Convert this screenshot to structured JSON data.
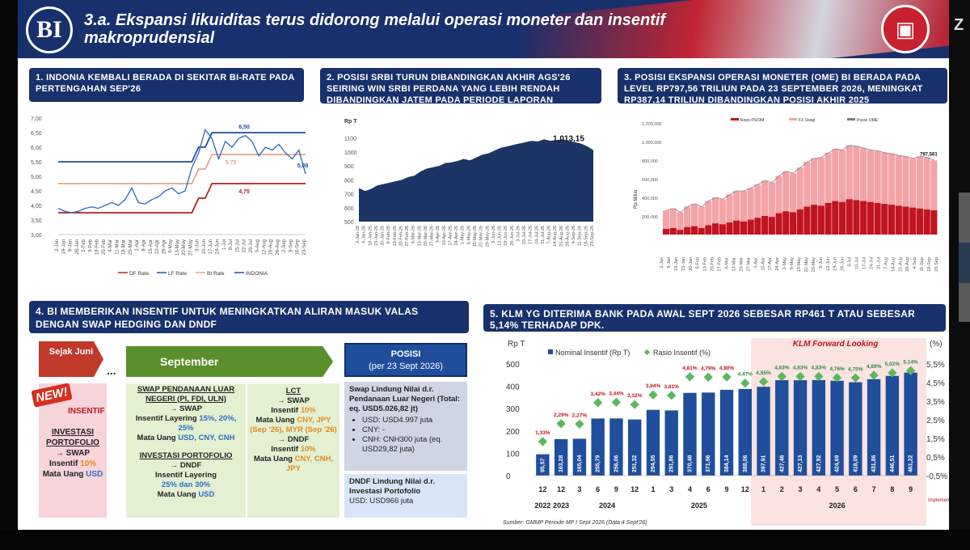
{
  "header": {
    "logo_text": "BI",
    "title": "3.a. Ekspansi likuiditas terus didorong melalui operasi moneter dan insentif makroprudensial"
  },
  "side": {
    "letter": "Z"
  },
  "panel1": {
    "title": "1. INDONIA KEMBALI BERADA DI SEKITAR BI-RATE PADA PERTENGAHAN SEP'26",
    "yticks": [
      "7,00",
      "6,50",
      "6,00",
      "5,50",
      "5,00",
      "4,50",
      "4,00",
      "3,50",
      "3,00"
    ],
    "xticks": [
      "2-Jan",
      "19-Jan",
      "9-Jan",
      "26-Jan",
      "2-Feb",
      "9-Feb",
      "18-Feb",
      "25-Feb",
      "4-Mar",
      "11-Mar",
      "18-Mar",
      "25-Mar",
      "1-Apr",
      "8-Apr",
      "15-Apr",
      "22-Apr",
      "29-Apr",
      "6-May",
      "13-May",
      "20-May",
      "27-May",
      "3-Jun",
      "10-Jun",
      "17-Jun",
      "24-Jun",
      "1-Jul",
      "8-Jul",
      "15-Jul",
      "22-Jul",
      "29-Jul",
      "5-Aug",
      "12-Aug",
      "19-Aug",
      "26-Aug",
      "2-Sep",
      "9-Sep",
      "16-Sep",
      "23-Sep"
    ],
    "labels": {
      "lf": "6,50",
      "indonia": "5,08",
      "bi": "5,75",
      "df": "4,75"
    },
    "legend": [
      "DF Rate",
      "LF Rate",
      "BI Rate",
      "INDONIA"
    ]
  },
  "panel2": {
    "title": "2. POSISI SRBI TURUN DIBANDINGKAN AKHIR AGS'26 SEIRING WIN SRBI PERDANA YANG LEBIH RENDAH DIBANDINGKAN JATEM PADA PERIODE LAPORAN",
    "unit": "Rp T",
    "yticks": [
      "1100",
      "1000",
      "900",
      "800",
      "700",
      "600",
      "500"
    ],
    "last_label": "1.013,15",
    "xticks": [
      "2-Jan-26",
      "9-Jan-26",
      "16-Jan-26",
      "23-Jan-26",
      "30-Jan-26",
      "6-Feb-26",
      "13-Feb-26",
      "20-Feb-26",
      "27-Feb-26",
      "6-Mar-26",
      "13-Mar-26",
      "20-Mar-26",
      "27-Mar-26",
      "3-Apr-26",
      "10-Apr-26",
      "17-Apr-26",
      "24-Apr-26",
      "1-May-26",
      "8-May-26",
      "15-May-26",
      "22-May-26",
      "29-May-26",
      "5-Jun-26",
      "12-Jun-26",
      "19-Jun-26",
      "26-Jun-26",
      "3-Jul-26",
      "10-Jul-26",
      "17-Jul-26",
      "24-Jul-26",
      "31-Jul-26",
      "7-Aug-26",
      "14-Aug-26",
      "21-Aug-26",
      "28-Aug-26",
      "4-Sep-26",
      "11-Sep-26",
      "18-Sep-26",
      "23-Sep-26"
    ]
  },
  "panel3": {
    "title": "3. POSISI EKSPANSI OPERASI MONETER (OME) BI BERADA PADA LEVEL RP797,56 TRILIUN PADA 23 SEPTEMBER 2026, MENINGKAT RP387,14 TRILIUN DIBANDINGKAN POSISI AKHIR 2025",
    "legend": [
      "Repo PS/OM",
      "FX Swap",
      "Posisi OME"
    ],
    "yticks": [
      "1.200.000",
      "1.000.000",
      "800.000",
      "600.000",
      "400.000",
      "200.000"
    ],
    "ylabel": "Rp Miliar",
    "last_label": "797,561",
    "xticks": [
      "2-Jan",
      "9-Jan",
      "16-Jan",
      "23-Jan",
      "30-Jan",
      "6-Feb",
      "13-Feb",
      "20-Feb",
      "27-Feb",
      "6-Mar",
      "13-Mar",
      "20-Mar",
      "27-Mar",
      "3-Apr",
      "10-Apr",
      "17-Apr",
      "24-Apr",
      "1-May",
      "8-May",
      "15-May",
      "22-May",
      "29-May",
      "5-Jun",
      "12-Jun",
      "19-Jun",
      "26-Jun",
      "3-Jul",
      "10-Jul",
      "17-Jul",
      "24-Jul",
      "31-Jul",
      "7-Aug",
      "14-Aug",
      "21-Aug",
      "28-Aug",
      "4-Sep",
      "11-Sep",
      "18-Sep",
      "23-Sep"
    ]
  },
  "panel4": {
    "title": "4. BI MEMBERIKAN INSENTIF UNTUK MENINGKATKAN ALIRAN MASUK VALAS DENGAN SWAP HEDGING DAN DNDF",
    "since_label": "Sejak Juni",
    "dots": "...",
    "september_label": "September",
    "new_badge": "NEW!",
    "insentif_badge": "INSENTIF",
    "col1": {
      "title": "INVESTASI PORTOFOLIO",
      "line1": "→ SWAP",
      "line2": "Insentif ",
      "pct": "10%",
      "line3": "Mata Uang ",
      "cur": "USD"
    },
    "col2": {
      "title": "SWAP PENDANAAN LUAR NEGERI (PI, FDI, ULN)",
      "line1": "→ SWAP",
      "line2": "Insentif Layering ",
      "pct": "15%, 20%, 25%",
      "line3": "Mata Uang ",
      "cur": "USD, CNY, CNH",
      "title2": "INVESTASI PORTOFOLIO",
      "line4": "→ DNDF",
      "line5": "Insentif Layering",
      "pct2": "25% dan 30%",
      "line6": "Mata Uang ",
      "cur2": "USD"
    },
    "col3": {
      "title": "LCT",
      "line1": "→ SWAP",
      "line2": "Insentif ",
      "pct": "10%",
      "line3": "Mata Uang ",
      "cur": "CNY, JPY",
      "cur_note": "(Sep '26), MYR (Sep '26)",
      "line4": "→ DNDF",
      "line5": "Insentif ",
      "pct2": "10%",
      "line6": "Mata Uang ",
      "cur2": "CNY, CNH, JPY"
    },
    "posisi": {
      "title": "POSISI",
      "subtitle": "(per 23 Sept 2026)",
      "box1_title": "Swap Lindung Nilai d.r. Pendanaan Luar Negeri (Total: eq. USD5.026,82 jt)",
      "box1_items": [
        "USD: USD4.997 juta",
        "CNY: -",
        "CNH: CNH300 juta (eq. USD29,82 juta)"
      ],
      "box2_title": "DNDF Lindung Nilai d.r. Investasi Portofolio",
      "box2_value": "USD: USD966 juta"
    }
  },
  "panel5": {
    "title": "5. KLM YG DITERIMA BANK PADA AWAL SEPT 2026 SEBESAR RP461 T ATAU SEBESAR 5,14% TERHADAP DPK.",
    "unit_left": "Rp T",
    "unit_right": "(%)",
    "legend_bar": "Nominal Insentif (Rp T)",
    "legend_dot": "Rasio Insentif (%)",
    "forward_label": "KLM Forward Looking",
    "yticks_left": [
      "500",
      "400",
      "300",
      "200",
      "100",
      "0"
    ],
    "yticks_right": [
      "5,5%",
      "4,5%",
      "3,5%",
      "2,5%",
      "1,5%",
      "0,5%",
      "-0,5%"
    ],
    "years": [
      "2022",
      "2023",
      "2024",
      "2025",
      "2026"
    ],
    "impl_label": "Implementasi KLM PPU Sep'26",
    "source": "Sumber: GMMP Periode MP I Sept 2026 (Data 4 Sept'26)"
  },
  "chart_data": [
    {
      "type": "line",
      "title": "1. INDONIA KEMBALI BERADA DI SEKITAR BI-RATE PADA PERTENGAHAN SEP'26",
      "ylim": [
        3.0,
        7.0
      ],
      "series": [
        {
          "name": "DF Rate",
          "color": "#b22222",
          "values": [
            3.75,
            3.75,
            3.75,
            3.75,
            3.75,
            3.75,
            3.75,
            3.75,
            3.75,
            3.75,
            3.75,
            3.75,
            3.75,
            3.75,
            3.75,
            3.75,
            3.75,
            3.75,
            3.75,
            3.75,
            3.75,
            4.25,
            4.25,
            4.75,
            4.75,
            4.75,
            4.75,
            4.75,
            4.75,
            4.75,
            4.75,
            4.75,
            4.75,
            4.75,
            4.75,
            4.75,
            4.75,
            4.75
          ]
        },
        {
          "name": "LF Rate",
          "color": "#1f4e9c",
          "values": [
            5.5,
            5.5,
            5.5,
            5.5,
            5.5,
            5.5,
            5.5,
            5.5,
            5.5,
            5.5,
            5.5,
            5.5,
            5.5,
            5.5,
            5.5,
            5.5,
            5.5,
            5.5,
            5.5,
            5.5,
            5.5,
            6.0,
            6.0,
            6.5,
            6.5,
            6.5,
            6.5,
            6.5,
            6.5,
            6.5,
            6.5,
            6.5,
            6.5,
            6.5,
            6.5,
            6.5,
            6.5,
            6.5
          ]
        },
        {
          "name": "BI Rate",
          "color": "#e8a48a",
          "values": [
            4.75,
            4.75,
            4.75,
            4.75,
            4.75,
            4.75,
            4.75,
            4.75,
            4.75,
            4.75,
            4.75,
            4.75,
            4.75,
            4.75,
            4.75,
            4.75,
            4.75,
            4.75,
            4.75,
            4.75,
            4.75,
            5.25,
            5.25,
            5.75,
            5.75,
            5.75,
            5.75,
            5.75,
            5.75,
            5.75,
            5.75,
            5.75,
            5.75,
            5.75,
            5.75,
            5.75,
            5.75,
            5.75
          ]
        },
        {
          "name": "INDONIA",
          "color": "#2a6ab3",
          "values": [
            3.9,
            3.8,
            3.75,
            3.8,
            3.9,
            3.95,
            3.9,
            4.0,
            4.1,
            4.0,
            4.2,
            4.6,
            4.1,
            4.05,
            4.2,
            4.3,
            4.5,
            4.6,
            4.4,
            4.5,
            5.3,
            5.8,
            6.6,
            6.3,
            5.6,
            6.2,
            6.0,
            6.3,
            6.4,
            6.2,
            5.7,
            6.0,
            5.9,
            6.1,
            5.8,
            5.6,
            5.9,
            5.08
          ]
        }
      ]
    },
    {
      "type": "area",
      "title": "2. POSISI SRBI TURUN DIBANDINGKAN AKHIR AGS'26 SEIRING WIN SRBI PERDANA YANG LEBIH RENDAH DIBANDINGKAN JATEM PADA PERIODE LAPORAN",
      "ylabel": "Rp T",
      "ylim": [
        500,
        1150
      ],
      "series": [
        {
          "name": "",
          "color": "#1d3564",
          "values": [
            740,
            720,
            735,
            760,
            770,
            780,
            790,
            800,
            820,
            830,
            860,
            880,
            890,
            900,
            920,
            925,
            935,
            950,
            940,
            960,
            980,
            990,
            1010,
            1030,
            1040,
            1050,
            1060,
            1070,
            1080,
            1075,
            1090,
            1080,
            1085,
            1090,
            1080,
            1070,
            1060,
            1040,
            1013.15
          ]
        }
      ]
    },
    {
      "type": "bar",
      "title": "3. POSISI EKSPANSI OPERASI MONETER (OME) BI BERADA PADA LEVEL RP797,56 TRILIUN PADA 23 SEPTEMBER 2026, MENINGKAT RP387,14 TRILIUN DIBANDINGKAN POSISI AKHIR 2025",
      "ylabel": "Rp Miliar",
      "ylim": [
        0,
        1200000
      ],
      "series": [
        {
          "name": "Repo PS/OM",
          "color": "#c0141e",
          "values": [
            60000,
            70000,
            50000,
            80000,
            90000,
            70000,
            100000,
            120000,
            110000,
            130000,
            150000,
            140000,
            160000,
            180000,
            200000,
            190000,
            230000,
            250000,
            240000,
            270000,
            300000,
            320000,
            310000,
            340000,
            360000,
            350000,
            380000,
            370000,
            360000,
            350000,
            340000,
            330000,
            320000,
            310000,
            300000,
            290000,
            280000,
            270000,
            260000
          ]
        },
        {
          "name": "FX Swap",
          "color": "#f4a3a8",
          "values": [
            200000,
            210000,
            190000,
            220000,
            240000,
            230000,
            260000,
            280000,
            270000,
            300000,
            320000,
            330000,
            340000,
            360000,
            380000,
            370000,
            400000,
            430000,
            420000,
            450000,
            480000,
            500000,
            520000,
            540000,
            560000,
            560000,
            580000,
            580000,
            570000,
            560000,
            560000,
            550000,
            550000,
            540000,
            540000,
            530000,
            560000,
            560000,
            537561
          ]
        },
        {
          "name": "Posisi OME",
          "color": "#777777",
          "values": [
            260000,
            280000,
            240000,
            300000,
            330000,
            300000,
            360000,
            400000,
            380000,
            430000,
            470000,
            470000,
            500000,
            540000,
            580000,
            560000,
            630000,
            680000,
            660000,
            720000,
            780000,
            820000,
            830000,
            880000,
            920000,
            910000,
            960000,
            950000,
            930000,
            910000,
            900000,
            880000,
            870000,
            850000,
            840000,
            820000,
            840000,
            830000,
            797561
          ]
        }
      ]
    },
    {
      "type": "bar",
      "title": "5. KLM YG DITERIMA BANK PADA AWAL SEPT 2026 SEBESAR RP461 T ATAU SEBESAR 5,14% TERHADAP DPK.",
      "ylabel": "Rp T",
      "ylim": [
        0,
        500
      ],
      "y2lim": [
        -0.5,
        5.5
      ],
      "categories": [
        "12",
        "12",
        "3",
        "6",
        "9",
        "12",
        "1",
        "3",
        "4",
        "6",
        "9",
        "12",
        "1",
        "2",
        "3",
        "4",
        "5",
        "6",
        "7",
        "8",
        "9"
      ],
      "series": [
        {
          "name": "Nominal Insentif (Rp T)",
          "color": "#1f4e9c",
          "values": [
            95.57,
            163.28,
            165.04,
            255.79,
            256.06,
            251.32,
            294.55,
            291.86,
            370.48,
            371.96,
            384.14,
            388.06,
            397.91,
            427.46,
            427.13,
            427.92,
            424.69,
            418.09,
            431.86,
            446.51,
            461.22
          ],
          "labels": [
            "95,57",
            "163,28",
            "165,04",
            "255,79",
            "256,06",
            "251,32",
            "294,55",
            "291,86",
            "370,48",
            "371,96",
            "384,14",
            "388,06",
            "397,91",
            "427,46",
            "427,13",
            "427,92",
            "424,69",
            "418,09",
            "431,86",
            "446,51",
            "461,22"
          ]
        },
        {
          "name": "Rasio Insentif (%)",
          "color": "#5cb85c",
          "values": [
            1.33,
            2.29,
            2.27,
            3.42,
            3.44,
            3.32,
            3.84,
            3.81,
            4.81,
            4.79,
            4.8,
            4.47,
            4.55,
            4.83,
            4.83,
            4.83,
            4.76,
            4.75,
            4.89,
            5.02,
            5.14
          ],
          "labels": [
            "1,33%",
            "2,29%",
            "2,27%",
            "3,42%",
            "3,44%",
            "3,32%",
            "3,84%",
            "3,81%",
            "4,81%",
            "4,79%",
            "4,80%",
            "4,47%",
            "4,55%",
            "4,83%",
            "4,83%",
            "4,83%",
            "4,76%",
            "4,75%",
            "4,89%",
            "5,02%",
            "5,14%"
          ]
        }
      ]
    }
  ]
}
